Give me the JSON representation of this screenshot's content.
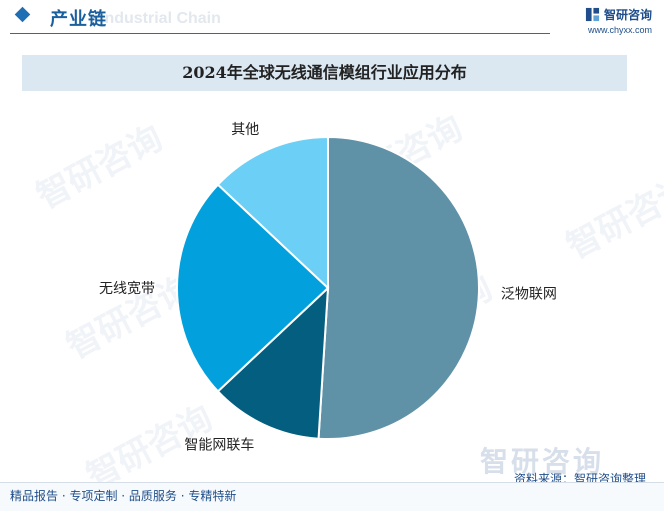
{
  "header": {
    "title": "产业链",
    "subtitle": "Industrial Chain"
  },
  "brand": {
    "name": "智研咨询",
    "url": "www.chyxx.com",
    "logo_icon": "chyxx-logo-icon"
  },
  "watermark": {
    "text": "智研咨询"
  },
  "chart_data": {
    "type": "pie",
    "title": "2024年全球无线通信模组行业应用分布",
    "categories": [
      "泛物联网",
      "智能网联车",
      "无线宽带",
      "其他"
    ],
    "values": [
      51,
      12,
      24,
      13
    ],
    "colors": [
      "#5f91a7",
      "#045e80",
      "#02a0dc",
      "#6ccff5"
    ],
    "legend": "none",
    "start_angle_deg": 90,
    "direction": "clockwise"
  },
  "source": {
    "text": "资料来源：智研咨询整理",
    "logo_text": "智研咨询"
  },
  "footer": {
    "text": "精品报告 · 专项定制 · 品质服务 · 专精特新"
  }
}
